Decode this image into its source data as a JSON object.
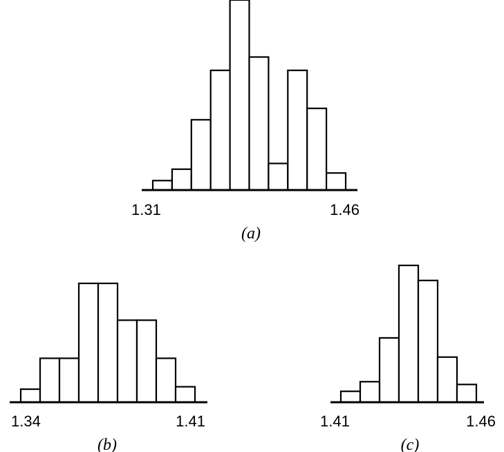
{
  "chart_data": [
    {
      "type": "histogram",
      "label": "(a)",
      "tick_labels": [
        "1.31",
        "1.46"
      ],
      "values": [
        0.05,
        0.11,
        0.37,
        0.63,
        1.0,
        0.7,
        0.14,
        0.63,
        0.43,
        0.09
      ],
      "grid": false
    },
    {
      "type": "histogram",
      "label": "(b)",
      "tick_labels": [
        "1.34",
        "1.41"
      ],
      "values": [
        0.11,
        0.37,
        0.37,
        1.0,
        1.0,
        0.69,
        0.69,
        0.37,
        0.13
      ],
      "grid": false
    },
    {
      "type": "histogram",
      "label": "(c)",
      "tick_labels": [
        "1.41",
        "1.46"
      ],
      "values": [
        0.08,
        0.15,
        0.47,
        1.0,
        0.89,
        0.33,
        0.13
      ],
      "grid": false
    }
  ]
}
